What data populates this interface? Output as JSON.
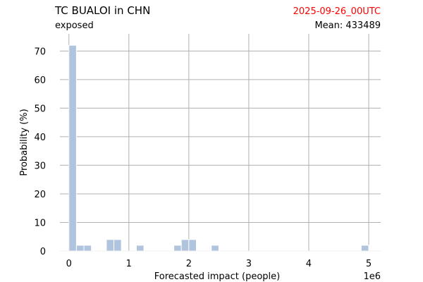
{
  "chart_data": {
    "type": "bar",
    "title": "TC BUALOI in CHN",
    "subtitle": "exposed",
    "run_label": "2025-09-26_00UTC",
    "mean_label": "Mean: 433489",
    "xlabel": "Forecasted impact (people)",
    "ylabel": "Probability (%)",
    "x_offset_label": "1e6",
    "xlim": [
      -0.15,
      5.2
    ],
    "ylim": [
      0,
      76
    ],
    "xticks": [
      {
        "value": 0,
        "label": "0"
      },
      {
        "value": 1,
        "label": "1"
      },
      {
        "value": 2,
        "label": "2"
      },
      {
        "value": 3,
        "label": "3"
      },
      {
        "value": 4,
        "label": "4"
      },
      {
        "value": 5,
        "label": "5"
      }
    ],
    "yticks": [
      {
        "value": 0,
        "label": "0"
      },
      {
        "value": 10,
        "label": "10"
      },
      {
        "value": 20,
        "label": "20"
      },
      {
        "value": 30,
        "label": "30"
      },
      {
        "value": 40,
        "label": "40"
      },
      {
        "value": 50,
        "label": "50"
      },
      {
        "value": 60,
        "label": "60"
      },
      {
        "value": 70,
        "label": "70"
      }
    ],
    "grid": true,
    "bar_color": "#b0c4de",
    "bin_width": 0.125,
    "bins": [
      {
        "start": 0.0,
        "value": 72
      },
      {
        "start": 0.125,
        "value": 2
      },
      {
        "start": 0.25,
        "value": 2
      },
      {
        "start": 0.625,
        "value": 4
      },
      {
        "start": 0.75,
        "value": 4
      },
      {
        "start": 1.125,
        "value": 2
      },
      {
        "start": 1.75,
        "value": 2
      },
      {
        "start": 1.875,
        "value": 4
      },
      {
        "start": 2.0,
        "value": 4
      },
      {
        "start": 2.375,
        "value": 2
      },
      {
        "start": 4.875,
        "value": 2
      }
    ]
  }
}
